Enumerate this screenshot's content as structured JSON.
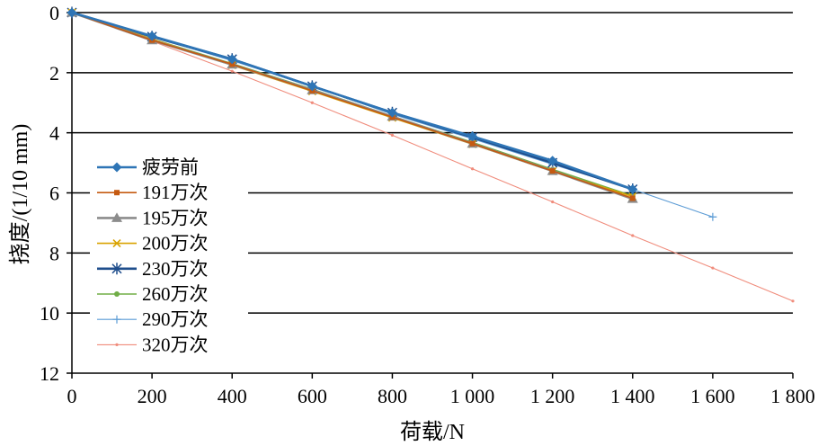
{
  "chart_data": {
    "type": "line",
    "xlabel": "荷载/N",
    "ylabel": "挠度/(1/10 mm)",
    "xlim": [
      0,
      1800
    ],
    "ylim": [
      0,
      12
    ],
    "y_inverted": true,
    "x_ticks": [
      0,
      200,
      400,
      600,
      800,
      1000,
      1200,
      1400,
      1600,
      1800
    ],
    "x_tick_labels": [
      "0",
      "200",
      "400",
      "600",
      "800",
      "1 000",
      "1 200",
      "1 400",
      "1 600",
      "1 800"
    ],
    "y_ticks": [
      0,
      2,
      4,
      6,
      8,
      10,
      12
    ],
    "y_tick_labels": [
      "0",
      "2",
      "4",
      "6",
      "8",
      "10",
      "12"
    ],
    "grid_horizontal": true,
    "grid_vertical": false,
    "legend": "left",
    "series": [
      {
        "name": "疲劳前",
        "marker": "diamond",
        "color": "#2E75B6",
        "x": [
          0,
          200,
          400,
          600,
          800,
          1000,
          1200,
          1400
        ],
        "y": [
          0,
          0.78,
          1.55,
          2.45,
          3.33,
          4.12,
          4.93,
          5.88
        ]
      },
      {
        "name": "191万次",
        "marker": "square",
        "color": "#C55A11",
        "x": [
          0,
          200,
          400,
          600,
          800,
          1000,
          1200,
          1400
        ],
        "y": [
          0,
          0.92,
          1.72,
          2.6,
          3.48,
          4.36,
          5.27,
          6.18
        ]
      },
      {
        "name": "195万次",
        "marker": "triangle",
        "color": "#8C8C8C",
        "x": [
          0,
          200,
          400,
          600,
          800,
          1000,
          1200,
          1400
        ],
        "y": [
          0,
          0.92,
          1.73,
          2.58,
          3.46,
          4.36,
          5.27,
          6.2
        ]
      },
      {
        "name": "200万次",
        "marker": "x",
        "color": "#D9A300",
        "x": [
          0,
          200,
          400,
          600,
          800,
          1000,
          1200,
          1400
        ],
        "y": [
          0,
          0.88,
          1.75,
          2.62,
          3.5,
          4.38,
          5.28,
          6.12
        ]
      },
      {
        "name": "230万次",
        "marker": "asterisk",
        "color": "#1F4E8C",
        "x": [
          0,
          200,
          400,
          600,
          800,
          1000,
          1200,
          1400
        ],
        "y": [
          0,
          0.8,
          1.55,
          2.45,
          3.33,
          4.15,
          5.0,
          5.88
        ]
      },
      {
        "name": "260万次",
        "marker": "circle",
        "color": "#70AD47",
        "x": [
          0,
          200,
          400,
          600,
          800,
          1000,
          1200,
          1400
        ],
        "y": [
          0,
          0.88,
          1.7,
          2.55,
          3.45,
          4.32,
          5.22,
          6.1
        ]
      },
      {
        "name": "290万次",
        "marker": "plus",
        "color": "#5B9BD5",
        "x": [
          0,
          200,
          400,
          600,
          800,
          1000,
          1200,
          1400,
          1600
        ],
        "y": [
          0,
          0.8,
          1.6,
          2.45,
          3.38,
          4.2,
          5.05,
          5.88,
          6.8
        ]
      },
      {
        "name": "320万次",
        "marker": "dot",
        "color": "#F08C7C",
        "x": [
          0,
          200,
          400,
          600,
          800,
          1000,
          1200,
          1400,
          1600,
          1800
        ],
        "y": [
          0,
          0.95,
          1.95,
          3.0,
          4.08,
          5.2,
          6.3,
          7.42,
          8.5,
          9.6
        ]
      }
    ]
  }
}
